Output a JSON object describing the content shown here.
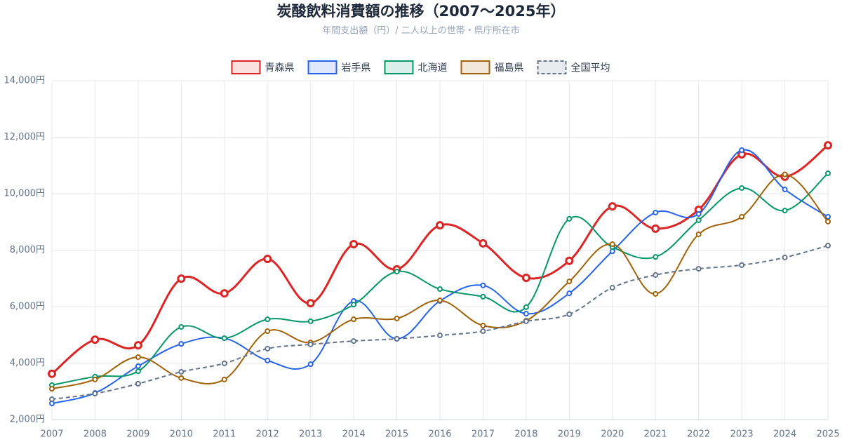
{
  "chart_data": {
    "type": "line",
    "title": "炭酸飲料消費額の推移（2007〜2025年）",
    "subtitle": "年間支出額（円）/ 二人以上の世帯・県庁所在市",
    "categories": [
      "2007",
      "2008",
      "2009",
      "2010",
      "2011",
      "2012",
      "2013",
      "2014",
      "2015",
      "2016",
      "2017",
      "2018",
      "2019",
      "2020",
      "2021",
      "2022",
      "2023",
      "2024",
      "2025"
    ],
    "series": [
      {
        "name": "青森県",
        "color": "#dc2626",
        "emphasis": true,
        "values": [
          3620,
          4830,
          4630,
          6990,
          6470,
          7690,
          6120,
          8210,
          7320,
          8880,
          8240,
          7020,
          7620,
          9550,
          8760,
          9430,
          11390,
          10600,
          11710
        ]
      },
      {
        "name": "岩手県",
        "color": "#2563eb",
        "values": [
          2570,
          2940,
          3890,
          4680,
          4880,
          4090,
          3960,
          6200,
          4860,
          6200,
          6750,
          5750,
          6470,
          7960,
          9330,
          9280,
          11540,
          10150,
          9180
        ]
      },
      {
        "name": "北海道",
        "color": "#059669",
        "values": [
          3220,
          3520,
          3710,
          5280,
          4880,
          5550,
          5480,
          6070,
          7240,
          6620,
          6350,
          5980,
          9110,
          8110,
          7760,
          9060,
          10200,
          9400,
          10720
        ]
      },
      {
        "name": "福島県",
        "color": "#a16207",
        "values": [
          3090,
          3420,
          4210,
          3470,
          3420,
          5130,
          4730,
          5550,
          5580,
          6220,
          5330,
          5500,
          6890,
          8210,
          6450,
          8560,
          9180,
          10680,
          9010
        ]
      },
      {
        "name": "全国平均",
        "color": "#64748b",
        "dashed": true,
        "values": [
          2720,
          2920,
          3270,
          3690,
          3990,
          4510,
          4660,
          4780,
          4860,
          4980,
          5130,
          5480,
          5730,
          6670,
          7120,
          7340,
          7470,
          7740,
          8160
        ]
      }
    ],
    "ylim": [
      2000,
      14000
    ],
    "yticks": [
      {
        "value": 2000,
        "label": "2,000円"
      },
      {
        "value": 4000,
        "label": "4,000円"
      },
      {
        "value": 6000,
        "label": "6,000円"
      },
      {
        "value": 8000,
        "label": "8,000円"
      },
      {
        "value": 10000,
        "label": "10,000円"
      },
      {
        "value": 12000,
        "label": "12,000円"
      },
      {
        "value": 14000,
        "label": "14,000円"
      }
    ],
    "grid": true,
    "legend": "top"
  }
}
